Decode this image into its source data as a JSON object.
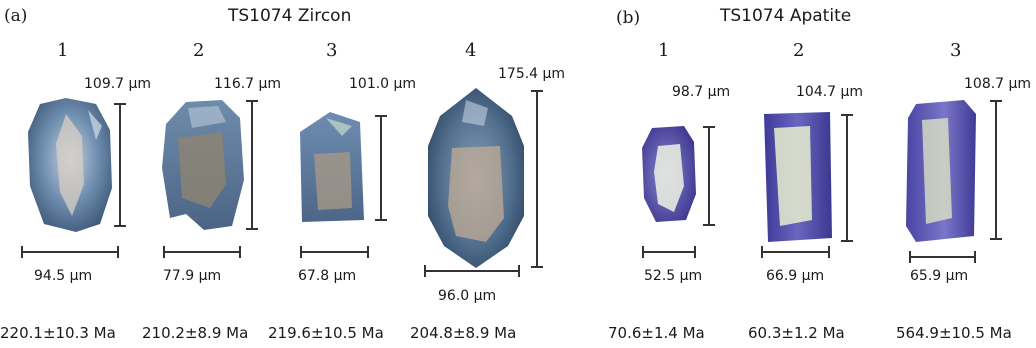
{
  "panel_a": {
    "label": "(a)",
    "title": "TS1074  Zircon",
    "grains": [
      {
        "number": "1",
        "length": "109.7 µm",
        "width": "94.5 µm",
        "age": "220.1±10.3 Ma"
      },
      {
        "number": "2",
        "length": "116.7 µm",
        "width": "77.9 µm",
        "age": "210.2±8.9 Ma"
      },
      {
        "number": "3",
        "length": "101.0 µm",
        "width": "67.8 µm",
        "age": "219.6±10.5 Ma"
      },
      {
        "number": "4",
        "length": "175.4 µm",
        "width": "96.0 µm",
        "age": "204.8±8.9 Ma"
      }
    ]
  },
  "panel_b": {
    "label": "(b)",
    "title": "TS1074  Apatite",
    "grains": [
      {
        "number": "1",
        "length": "98.7 µm",
        "width": "52.5 µm",
        "age": "70.6±1.4 Ma"
      },
      {
        "number": "2",
        "length": "104.7 µm",
        "width": "66.9 µm",
        "age": "60.3±1.2 Ma"
      },
      {
        "number": "3",
        "length": "108.7 µm",
        "width": "65.9 µm",
        "age": "564.9±10.5 Ma"
      }
    ]
  },
  "colors": {
    "zircon_body": "#5f7b98",
    "zircon_core": "#a89c8a",
    "apatite_body": "#5a55b0",
    "apatite_core": "#dfe6c8",
    "scale_bar": "#333333"
  }
}
